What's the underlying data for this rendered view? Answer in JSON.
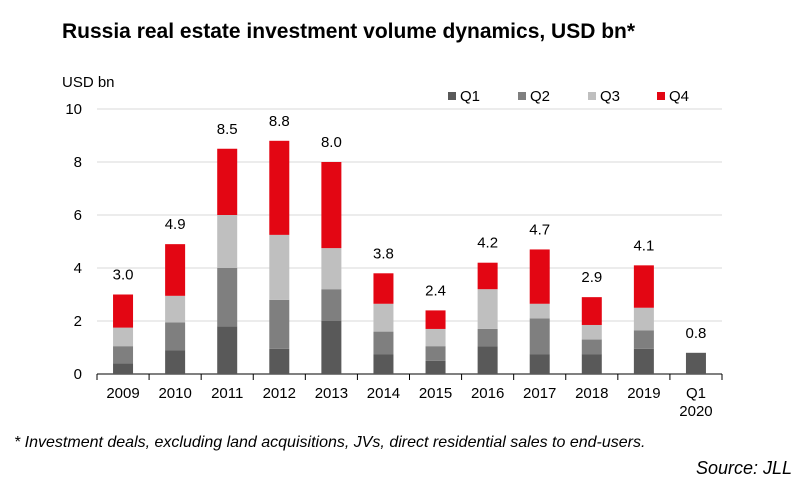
{
  "colors": {
    "Q1": "#595959",
    "Q2": "#7f7f7f",
    "Q3": "#bfbfbf",
    "Q4": "#e30613",
    "grid": "#d9d9d9",
    "axis": "#000000"
  },
  "chart_data": {
    "type": "bar",
    "stacked": true,
    "title": "Russia real estate investment volume dynamics, USD bn*",
    "ylabel": "USD bn",
    "xlabel": "",
    "ylim": [
      0,
      10
    ],
    "yticks": [
      "0",
      "2",
      "4",
      "6",
      "8",
      "10"
    ],
    "grid": true,
    "legend_position": "top-right",
    "categories": [
      "2009",
      "2010",
      "2011",
      "2012",
      "2013",
      "2014",
      "2015",
      "2016",
      "2017",
      "2018",
      "2019",
      "Q1 2020"
    ],
    "series": [
      {
        "name": "Q1",
        "values": [
          0.4,
          0.9,
          1.8,
          0.95,
          2.0,
          0.75,
          0.5,
          1.05,
          0.75,
          0.75,
          0.95,
          0.8
        ]
      },
      {
        "name": "Q2",
        "values": [
          0.65,
          1.05,
          2.2,
          1.85,
          1.2,
          0.85,
          0.55,
          0.65,
          1.35,
          0.55,
          0.7,
          0
        ]
      },
      {
        "name": "Q3",
        "values": [
          0.7,
          1.0,
          2.0,
          2.45,
          1.55,
          1.05,
          0.65,
          1.5,
          0.55,
          0.55,
          0.85,
          0
        ]
      },
      {
        "name": "Q4",
        "values": [
          1.25,
          1.95,
          2.5,
          3.55,
          3.25,
          1.15,
          0.7,
          1.0,
          2.05,
          1.05,
          1.6,
          0
        ]
      }
    ],
    "totals": [
      "3.0",
      "4.9",
      "8.5",
      "8.8",
      "8.0",
      "3.8",
      "2.4",
      "4.2",
      "4.7",
      "2.9",
      "4.1",
      "0.8"
    ]
  },
  "footnote": "* Investment deals, excluding land acquisitions, JVs, direct residential sales to end-users.",
  "source": "Source: JLL"
}
